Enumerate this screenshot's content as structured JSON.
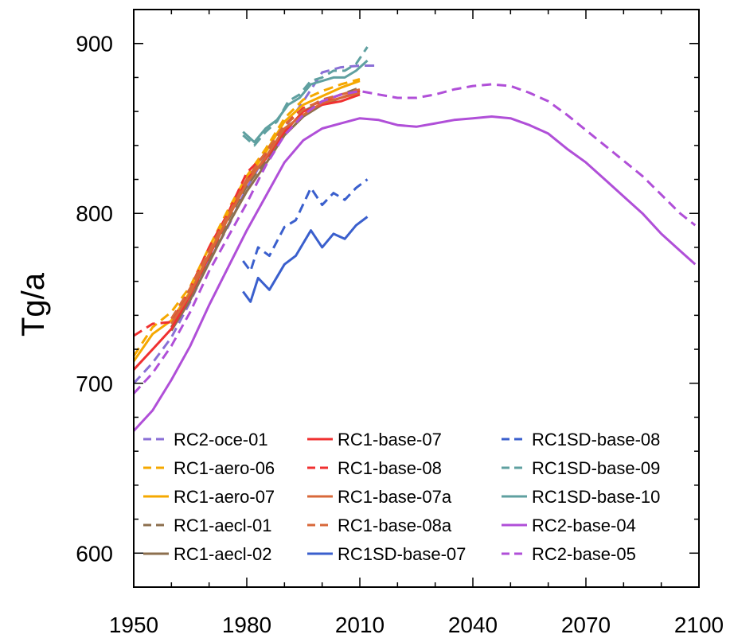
{
  "chart_data": {
    "type": "line",
    "ylabel": "Tg/a",
    "xlabel": "",
    "title": "",
    "xlim": [
      1950,
      2100
    ],
    "ylim": [
      580,
      920
    ],
    "x_ticks": [
      1950,
      1980,
      2010,
      2040,
      2070,
      2100
    ],
    "y_ticks": [
      600,
      700,
      800,
      900
    ],
    "x_tick_labels": [
      "1950",
      "1980",
      "2010",
      "2040",
      "2070",
      "2100"
    ],
    "y_tick_labels": [
      "600",
      "700",
      "800",
      "900"
    ],
    "legend_position": "bottom, inside, three columns",
    "series": [
      {
        "name": "RC2-oce-01",
        "color": "#8a6fd6",
        "dash": true,
        "points": [
          [
            1950,
            700
          ],
          [
            1955,
            712
          ],
          [
            1960,
            727
          ],
          [
            1965,
            748
          ],
          [
            1970,
            772
          ],
          [
            1975,
            792
          ],
          [
            1980,
            815
          ],
          [
            1985,
            834
          ],
          [
            1990,
            850
          ],
          [
            1995,
            866
          ],
          [
            2000,
            883
          ],
          [
            2005,
            886
          ],
          [
            2010,
            887
          ],
          [
            2015,
            887
          ]
        ]
      },
      {
        "name": "RC1-aero-06",
        "color": "#f5a800",
        "dash": true,
        "points": [
          [
            1950,
            716
          ],
          [
            1955,
            733
          ],
          [
            1960,
            742
          ],
          [
            1965,
            757
          ],
          [
            1970,
            780
          ],
          [
            1975,
            802
          ],
          [
            1980,
            822
          ],
          [
            1985,
            838
          ],
          [
            1990,
            856
          ],
          [
            1995,
            867
          ],
          [
            2000,
            872
          ],
          [
            2005,
            876
          ],
          [
            2010,
            879
          ]
        ]
      },
      {
        "name": "RC1-aero-07",
        "color": "#f5a800",
        "dash": false,
        "points": [
          [
            1950,
            713
          ],
          [
            1955,
            729
          ],
          [
            1960,
            737
          ],
          [
            1965,
            754
          ],
          [
            1970,
            776
          ],
          [
            1975,
            800
          ],
          [
            1980,
            820
          ],
          [
            1985,
            836
          ],
          [
            1990,
            854
          ],
          [
            1995,
            864
          ],
          [
            2000,
            869
          ],
          [
            2005,
            874
          ],
          [
            2010,
            878
          ]
        ]
      },
      {
        "name": "RC1-aecl-01",
        "color": "#8c6f4e",
        "dash": true,
        "points": [
          [
            1960,
            733
          ],
          [
            1965,
            752
          ],
          [
            1970,
            774
          ],
          [
            1975,
            796
          ],
          [
            1980,
            816
          ],
          [
            1985,
            831
          ],
          [
            1990,
            848
          ],
          [
            1995,
            860
          ],
          [
            2000,
            866
          ],
          [
            2005,
            870
          ],
          [
            2010,
            874
          ]
        ]
      },
      {
        "name": "RC1-aecl-02",
        "color": "#8c6f4e",
        "dash": false,
        "points": [
          [
            1960,
            731
          ],
          [
            1965,
            749
          ],
          [
            1970,
            771
          ],
          [
            1975,
            793
          ],
          [
            1980,
            813
          ],
          [
            1985,
            829
          ],
          [
            1990,
            846
          ],
          [
            1995,
            857
          ],
          [
            2000,
            864
          ],
          [
            2005,
            868
          ],
          [
            2010,
            872
          ]
        ]
      },
      {
        "name": "RC1-base-07",
        "color": "#f03030",
        "dash": false,
        "points": [
          [
            1950,
            708
          ],
          [
            1955,
            720
          ],
          [
            1960,
            732
          ],
          [
            1965,
            752
          ],
          [
            1970,
            775
          ],
          [
            1975,
            797
          ],
          [
            1980,
            820
          ],
          [
            1985,
            832
          ],
          [
            1990,
            848
          ],
          [
            1995,
            860
          ],
          [
            2000,
            864
          ],
          [
            2005,
            866
          ],
          [
            2010,
            870
          ]
        ]
      },
      {
        "name": "RC1-base-08",
        "color": "#f03030",
        "dash": true,
        "points": [
          [
            1950,
            728
          ],
          [
            1955,
            735
          ],
          [
            1960,
            736
          ],
          [
            1965,
            756
          ],
          [
            1970,
            780
          ],
          [
            1975,
            800
          ],
          [
            1980,
            824
          ],
          [
            1985,
            835
          ],
          [
            1990,
            852
          ],
          [
            1995,
            862
          ],
          [
            2000,
            866
          ],
          [
            2005,
            868
          ],
          [
            2010,
            872
          ]
        ]
      },
      {
        "name": "RC1-base-07a",
        "color": "#d8683a",
        "dash": false,
        "points": [
          [
            1960,
            735
          ],
          [
            1965,
            753
          ],
          [
            1970,
            776
          ],
          [
            1975,
            797
          ],
          [
            1980,
            818
          ],
          [
            1985,
            833
          ],
          [
            1990,
            850
          ],
          [
            1995,
            858
          ],
          [
            2000,
            865
          ],
          [
            2005,
            868
          ],
          [
            2010,
            871
          ]
        ]
      },
      {
        "name": "RC1-base-08a",
        "color": "#d8683a",
        "dash": true,
        "points": [
          [
            1960,
            738
          ],
          [
            1965,
            756
          ],
          [
            1970,
            778
          ],
          [
            1975,
            799
          ],
          [
            1980,
            820
          ],
          [
            1985,
            836
          ],
          [
            1990,
            852
          ],
          [
            1995,
            861
          ],
          [
            2000,
            867
          ],
          [
            2005,
            870
          ],
          [
            2010,
            873
          ]
        ]
      },
      {
        "name": "RC1SD-base-07",
        "color": "#3a5fcd",
        "dash": false,
        "points": [
          [
            1979,
            754
          ],
          [
            1981,
            748
          ],
          [
            1983,
            762
          ],
          [
            1986,
            755
          ],
          [
            1990,
            770
          ],
          [
            1993,
            775
          ],
          [
            1997,
            790
          ],
          [
            2000,
            780
          ],
          [
            2003,
            788
          ],
          [
            2006,
            785
          ],
          [
            2009,
            793
          ],
          [
            2012,
            798
          ]
        ]
      },
      {
        "name": "RC1SD-base-08",
        "color": "#3a5fcd",
        "dash": true,
        "points": [
          [
            1979,
            772
          ],
          [
            1981,
            766
          ],
          [
            1983,
            780
          ],
          [
            1986,
            775
          ],
          [
            1990,
            792
          ],
          [
            1993,
            796
          ],
          [
            1997,
            815
          ],
          [
            2000,
            805
          ],
          [
            2003,
            812
          ],
          [
            2006,
            808
          ],
          [
            2009,
            815
          ],
          [
            2012,
            820
          ]
        ]
      },
      {
        "name": "RC1SD-base-09",
        "color": "#5fa0a0",
        "dash": true,
        "points": [
          [
            1979,
            846
          ],
          [
            1982,
            840
          ],
          [
            1985,
            848
          ],
          [
            1988,
            854
          ],
          [
            1991,
            866
          ],
          [
            1994,
            870
          ],
          [
            1997,
            878
          ],
          [
            2000,
            880
          ],
          [
            2003,
            884
          ],
          [
            2006,
            884
          ],
          [
            2009,
            888
          ],
          [
            2012,
            898
          ]
        ]
      },
      {
        "name": "RC1SD-base-10",
        "color": "#5fa0a0",
        "dash": false,
        "points": [
          [
            1979,
            848
          ],
          [
            1982,
            842
          ],
          [
            1985,
            850
          ],
          [
            1988,
            855
          ],
          [
            1991,
            864
          ],
          [
            1994,
            868
          ],
          [
            1997,
            876
          ],
          [
            2000,
            878
          ],
          [
            2003,
            880
          ],
          [
            2006,
            880
          ],
          [
            2009,
            884
          ],
          [
            2012,
            890
          ]
        ]
      },
      {
        "name": "RC2-base-04",
        "color": "#b04fd8",
        "dash": false,
        "points": [
          [
            1950,
            672
          ],
          [
            1955,
            684
          ],
          [
            1960,
            702
          ],
          [
            1965,
            722
          ],
          [
            1970,
            746
          ],
          [
            1975,
            768
          ],
          [
            1980,
            790
          ],
          [
            1985,
            810
          ],
          [
            1990,
            830
          ],
          [
            1995,
            843
          ],
          [
            2000,
            850
          ],
          [
            2005,
            853
          ],
          [
            2010,
            856
          ],
          [
            2015,
            855
          ],
          [
            2020,
            852
          ],
          [
            2025,
            851
          ],
          [
            2030,
            853
          ],
          [
            2035,
            855
          ],
          [
            2040,
            856
          ],
          [
            2045,
            857
          ],
          [
            2050,
            856
          ],
          [
            2055,
            852
          ],
          [
            2060,
            847
          ],
          [
            2065,
            838
          ],
          [
            2070,
            830
          ],
          [
            2075,
            820
          ],
          [
            2080,
            810
          ],
          [
            2085,
            800
          ],
          [
            2090,
            788
          ],
          [
            2095,
            778
          ],
          [
            2099,
            770
          ]
        ]
      },
      {
        "name": "RC2-base-05",
        "color": "#b04fd8",
        "dash": true,
        "points": [
          [
            1950,
            694
          ],
          [
            1955,
            706
          ],
          [
            1960,
            722
          ],
          [
            1965,
            742
          ],
          [
            1970,
            766
          ],
          [
            1975,
            786
          ],
          [
            1980,
            806
          ],
          [
            1985,
            828
          ],
          [
            1990,
            846
          ],
          [
            1995,
            858
          ],
          [
            2000,
            866
          ],
          [
            2005,
            870
          ],
          [
            2010,
            872
          ],
          [
            2015,
            870
          ],
          [
            2020,
            868
          ],
          [
            2025,
            868
          ],
          [
            2030,
            870
          ],
          [
            2035,
            873
          ],
          [
            2040,
            875
          ],
          [
            2045,
            876
          ],
          [
            2050,
            875
          ],
          [
            2055,
            871
          ],
          [
            2060,
            866
          ],
          [
            2065,
            858
          ],
          [
            2070,
            849
          ],
          [
            2075,
            840
          ],
          [
            2080,
            831
          ],
          [
            2085,
            822
          ],
          [
            2090,
            811
          ],
          [
            2095,
            800
          ],
          [
            2099,
            793
          ]
        ]
      }
    ],
    "legend_order": [
      "RC2-oce-01",
      "RC1-aero-06",
      "RC1-aero-07",
      "RC1-aecl-01",
      "RC1-aecl-02",
      "RC1-base-07",
      "RC1-base-08",
      "RC1-base-07a",
      "RC1-base-08a",
      "RC1SD-base-07",
      "RC1SD-base-08",
      "RC1SD-base-09",
      "RC1SD-base-10",
      "RC2-base-04",
      "RC2-base-05"
    ]
  }
}
